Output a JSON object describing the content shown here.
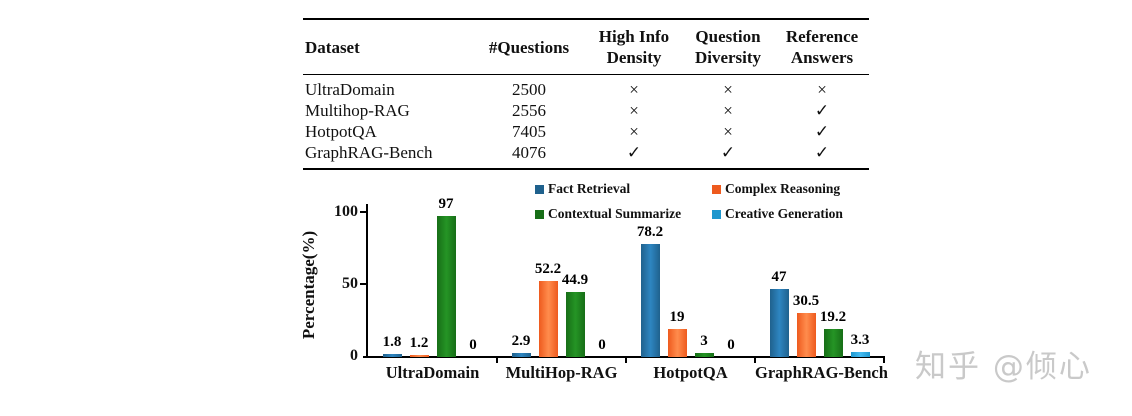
{
  "table": {
    "headers": [
      "Dataset",
      "#Questions",
      "High Info\nDensity",
      "Question\nDiversity",
      "Reference\nAnswers"
    ],
    "rows": [
      [
        "UltraDomain",
        "2500",
        "×",
        "×",
        "×"
      ],
      [
        "Multihop-RAG",
        "2556",
        "×",
        "×",
        "✓"
      ],
      [
        "HotpotQA",
        "7405",
        "×",
        "×",
        "✓"
      ],
      [
        "GraphRAG-Bench",
        "4076",
        "✓",
        "✓",
        "✓"
      ]
    ]
  },
  "chart_data": {
    "type": "bar",
    "title": "",
    "ylabel": "Percentage(%)",
    "xlabel": "",
    "ylim": [
      0,
      100
    ],
    "yticks": [
      "0",
      "50",
      "100"
    ],
    "grid": false,
    "legend_position": "top-right",
    "categories": [
      "UltraDomain",
      "MultiHop-RAG",
      "HotpotQA",
      "GraphRAG-Bench"
    ],
    "series": [
      {
        "name": "Fact Retrieval",
        "color": "#1F618D",
        "color_light": "#2E86C1",
        "values": [
          1.8,
          2.9,
          78.2,
          47
        ],
        "labels": [
          "1.8",
          "2.9",
          "78.2",
          "47"
        ]
      },
      {
        "name": "Complex Reasoning",
        "color": "#EE5A1E",
        "color_light": "#FF8C4D",
        "values": [
          1.2,
          52.2,
          19,
          30.5
        ],
        "labels": [
          "1.2",
          "52.2",
          "19",
          "30.5"
        ]
      },
      {
        "name": "Contextual Summarize",
        "color": "#176E17",
        "color_light": "#259425",
        "values": [
          97,
          44.9,
          3,
          19.2
        ],
        "labels": [
          "97",
          "44.9",
          "3",
          "19.2"
        ]
      },
      {
        "name": "Creative Generation",
        "color": "#1E97CE",
        "color_light": "#45BCF2",
        "values": [
          0,
          0,
          0,
          3.3
        ],
        "labels": [
          "0",
          "0",
          "0",
          "3.3"
        ]
      }
    ]
  },
  "watermark": {
    "text": "知乎 @倾心",
    "color": "#C9C9C9"
  }
}
